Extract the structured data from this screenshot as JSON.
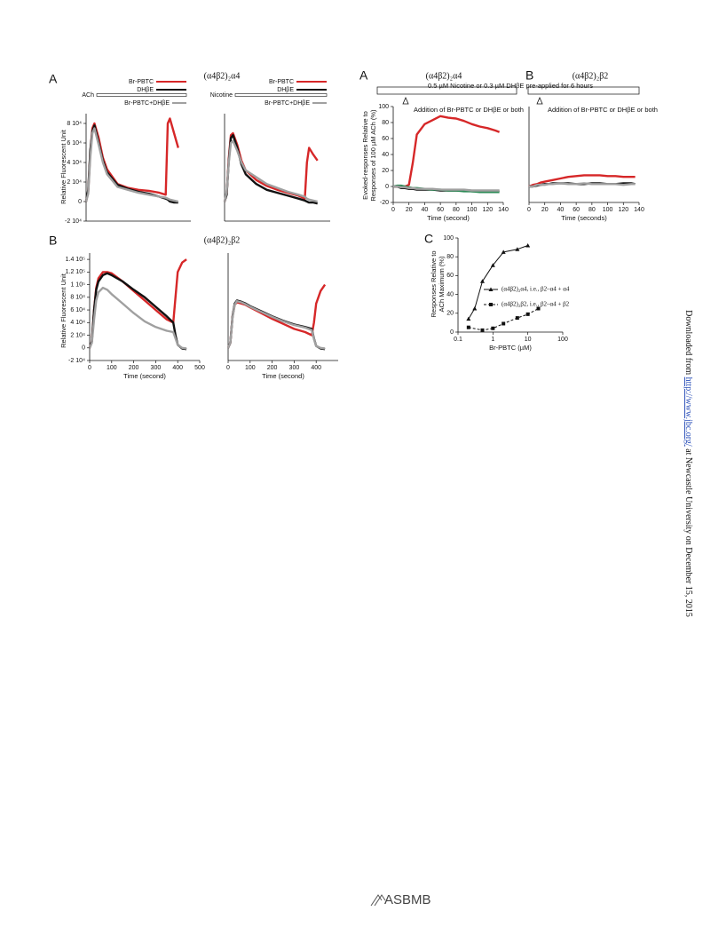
{
  "chart_data": [
    {
      "type": "line",
      "panel": "A",
      "title": "(α4β2)₂α4",
      "treatment": "ACh",
      "ylabel": "Relative Fluorescent Unit",
      "xlim": [
        0,
        500
      ],
      "ylim": [
        -20000,
        90000
      ],
      "yticks": [
        {
          "value": -20000,
          "label": "-2 10⁴"
        },
        0,
        {
          "value": 20000,
          "label": "2 10⁴"
        },
        {
          "value": 40000,
          "label": "4 10⁴"
        },
        {
          "value": 60000,
          "label": "6 10⁴"
        },
        {
          "value": 80000,
          "label": "8 10⁴"
        }
      ],
      "legend": true,
      "x": [
        0,
        10,
        20,
        30,
        40,
        60,
        80,
        100,
        150,
        200,
        250,
        300,
        350,
        380,
        390,
        400,
        420,
        440
      ],
      "series": [
        {
          "name": "Br-PBTC",
          "color": "#d62728",
          "values": [
            0,
            10000,
            50000,
            75000,
            80000,
            65000,
            45000,
            33000,
            18000,
            14000,
            12000,
            11000,
            9000,
            7000,
            80000,
            85000,
            70000,
            55000
          ]
        },
        {
          "name": "DHβE",
          "color": "#111111",
          "values": [
            0,
            12000,
            52000,
            72000,
            78000,
            60000,
            42000,
            30000,
            17000,
            13000,
            10000,
            8000,
            5000,
            3000,
            2000,
            0,
            -1000,
            -1000
          ]
        },
        {
          "name": "Br-PBTC+DHβE",
          "color": "#a0a0a0",
          "values": [
            0,
            8000,
            45000,
            70000,
            75000,
            58000,
            40000,
            28000,
            15000,
            12000,
            9000,
            7000,
            5000,
            4000,
            3000,
            2000,
            1000,
            0
          ]
        }
      ]
    },
    {
      "type": "line",
      "treatment": "Nicotine",
      "xlim": [
        0,
        500
      ],
      "ylim": [
        -20000,
        90000
      ],
      "legend": true,
      "x": [
        0,
        10,
        20,
        30,
        40,
        60,
        80,
        100,
        150,
        200,
        250,
        300,
        350,
        380,
        390,
        400,
        420,
        440
      ],
      "series": [
        {
          "name": "Br-PBTC",
          "color": "#d62728",
          "values": [
            0,
            8000,
            45000,
            68000,
            70000,
            58000,
            42000,
            32000,
            22000,
            16000,
            12000,
            9000,
            6000,
            3000,
            40000,
            55000,
            48000,
            42000
          ]
        },
        {
          "name": "DHβE",
          "color": "#111111",
          "values": [
            0,
            7000,
            42000,
            65000,
            68000,
            55000,
            38000,
            28000,
            18000,
            12000,
            9000,
            6000,
            3000,
            1000,
            0,
            -1000,
            -1000,
            -2000
          ]
        },
        {
          "name": "Br-PBTC+DHβE",
          "color": "#a0a0a0",
          "values": [
            0,
            10000,
            40000,
            60000,
            62000,
            52000,
            40000,
            32000,
            25000,
            18000,
            14000,
            10000,
            7000,
            5000,
            3000,
            2000,
            1000,
            0
          ]
        }
      ]
    },
    {
      "type": "line",
      "panel": "B",
      "title": "(α4β2)₂β2",
      "ylabel": "Relative Fluorescent Unit",
      "xlabel": "Time (second)",
      "xlim": [
        0,
        500
      ],
      "xticks": [
        0,
        100,
        200,
        300,
        400,
        500
      ],
      "ylim": [
        -20000,
        150000
      ],
      "yticks": [
        {
          "value": -20000,
          "label": "-2 10⁴"
        },
        0,
        {
          "value": 20000,
          "label": "2 10⁴"
        },
        {
          "value": 40000,
          "label": "4 10⁴"
        },
        {
          "value": 60000,
          "label": "6 10⁴"
        },
        {
          "value": 80000,
          "label": "8 10⁴"
        },
        {
          "value": 100000,
          "label": "1 10⁵"
        },
        {
          "value": 120000,
          "label": "1.2 10⁵"
        },
        {
          "value": 140000,
          "label": "1.4 10⁵"
        }
      ],
      "x": [
        0,
        10,
        20,
        30,
        40,
        60,
        80,
        100,
        150,
        200,
        250,
        300,
        350,
        380,
        390,
        400,
        420,
        440
      ],
      "series": [
        {
          "color": "#d62728",
          "values": [
            0,
            10000,
            60000,
            95000,
            110000,
            120000,
            120000,
            118000,
            105000,
            90000,
            75000,
            60000,
            45000,
            40000,
            80000,
            120000,
            135000,
            140000
          ]
        },
        {
          "color": "#111111",
          "values": [
            0,
            10000,
            60000,
            92000,
            105000,
            115000,
            118000,
            115000,
            105000,
            92000,
            80000,
            65000,
            50000,
            40000,
            20000,
            5000,
            -1000,
            -2000
          ]
        },
        {
          "color": "#a0a0a0",
          "values": [
            0,
            8000,
            45000,
            75000,
            88000,
            95000,
            92000,
            85000,
            70000,
            55000,
            42000,
            33000,
            27000,
            25000,
            15000,
            5000,
            0,
            -1000
          ]
        }
      ]
    },
    {
      "type": "line",
      "xlabel": "Time (second)",
      "xlim": [
        0,
        500
      ],
      "xticks": [
        0,
        100,
        200,
        300,
        400
      ],
      "ylim": [
        -20000,
        150000
      ],
      "x": [
        0,
        10,
        20,
        30,
        40,
        60,
        80,
        100,
        150,
        200,
        250,
        300,
        350,
        380,
        390,
        400,
        420,
        440
      ],
      "series": [
        {
          "color": "#d62728",
          "values": [
            0,
            8000,
            50000,
            68000,
            72000,
            70000,
            68000,
            64000,
            55000,
            46000,
            38000,
            30000,
            25000,
            20000,
            40000,
            70000,
            90000,
            100000
          ]
        },
        {
          "color": "#111111",
          "values": [
            0,
            8000,
            50000,
            70000,
            75000,
            73000,
            70000,
            66000,
            58000,
            50000,
            43000,
            37000,
            33000,
            30000,
            15000,
            3000,
            -1000,
            -2000
          ]
        },
        {
          "color": "#a0a0a0",
          "values": [
            0,
            8000,
            48000,
            68000,
            74000,
            72000,
            69000,
            65000,
            57000,
            49000,
            42000,
            36000,
            32000,
            28000,
            14000,
            3000,
            0,
            -1000
          ]
        }
      ]
    },
    {
      "type": "line",
      "panel": "A",
      "title": "(α4β2)₂α4",
      "annotation": "0.5 µM Nicotine or 0.3 µM DHβE pre-applied for 6 hours",
      "note": "Addition of Br-PBTC or DHβE or both",
      "ylabel": [
        "Evoked-responses Relative to",
        "Responses of 100 µM ACh (%)"
      ],
      "xlabel": "Time (second)",
      "xlim": [
        0,
        140
      ],
      "xticks": [
        0,
        20,
        40,
        60,
        80,
        100,
        120,
        140
      ],
      "ylim": [
        -20,
        100
      ],
      "yticks": [
        -20,
        0,
        20,
        40,
        60,
        80,
        100
      ],
      "x": [
        0,
        5,
        10,
        15,
        20,
        25,
        30,
        40,
        50,
        60,
        70,
        80,
        90,
        100,
        110,
        120,
        130,
        135
      ],
      "series": [
        {
          "color": "#d62728",
          "values": [
            0,
            0,
            0,
            0,
            2,
            30,
            65,
            78,
            83,
            88,
            86,
            85,
            82,
            78,
            75,
            73,
            70,
            68
          ]
        },
        {
          "color": "#111111",
          "values": [
            0,
            0,
            -2,
            -2,
            -3,
            -3,
            -4,
            -4,
            -4,
            -5,
            -5,
            -5,
            -5,
            -6,
            -6,
            -6,
            -6,
            -5
          ]
        },
        {
          "color": "#2e8b57",
          "values": [
            0,
            1,
            1,
            0,
            -1,
            -2,
            -2,
            -3,
            -4,
            -4,
            -5,
            -5,
            -6,
            -6,
            -7,
            -7,
            -7,
            -7
          ]
        },
        {
          "color": "#a0a0a0",
          "values": [
            0,
            0,
            -1,
            -1,
            -2,
            -2,
            -3,
            -3,
            -3,
            -4,
            -4,
            -4,
            -4,
            -5,
            -5,
            -5,
            -5,
            -5
          ]
        }
      ]
    },
    {
      "type": "line",
      "panel": "B",
      "title": "(α4β2)₂β2",
      "note": "Addition of Br-PBTC or DHβE or both",
      "xlabel": "Time (seconds)",
      "xlim": [
        0,
        140
      ],
      "xticks": [
        0,
        20,
        40,
        60,
        80,
        100,
        120,
        140
      ],
      "ylim": [
        -20,
        100
      ],
      "x": [
        0,
        5,
        10,
        15,
        20,
        25,
        30,
        40,
        50,
        60,
        70,
        80,
        90,
        100,
        110,
        120,
        130,
        135
      ],
      "series": [
        {
          "color": "#d62728",
          "values": [
            0,
            2,
            3,
            5,
            6,
            7,
            8,
            10,
            12,
            13,
            14,
            14,
            14,
            13,
            13,
            12,
            12,
            12
          ]
        },
        {
          "color": "#111111",
          "values": [
            0,
            0,
            1,
            2,
            3,
            3,
            4,
            4,
            4,
            3,
            3,
            4,
            4,
            3,
            3,
            4,
            4,
            3
          ]
        },
        {
          "color": "#a0a0a0",
          "values": [
            0,
            0,
            2,
            2,
            2,
            3,
            3,
            4,
            3,
            3,
            4,
            3,
            3,
            3,
            3,
            2,
            3,
            3
          ]
        }
      ]
    },
    {
      "type": "line",
      "panel": "C",
      "xscale": "log",
      "ylabel": [
        "Responses Relative to",
        "ACh Maximum (%)"
      ],
      "xlabel": "Br-PBTC (µM)",
      "xlim": [
        0.1,
        100
      ],
      "xticks": [
        0.1,
        1,
        10,
        100
      ],
      "ylim": [
        0,
        100
      ],
      "yticks": [
        0,
        20,
        40,
        60,
        80,
        100
      ],
      "legend": true,
      "series": [
        {
          "name": "(α4β2)₂α4, i.e., β2–α4 + α4",
          "color": "#111111",
          "marker": "triangle",
          "x": [
            0.2,
            0.3,
            0.5,
            1,
            2,
            5,
            10
          ],
          "values": [
            14,
            25,
            54,
            71,
            85,
            88,
            92
          ]
        },
        {
          "name": "(α4β2)₂β2, i.e., β2–α4 + β2",
          "color": "#111111",
          "marker": "square",
          "dash": true,
          "x": [
            0.2,
            0.5,
            1,
            2,
            5,
            10,
            20
          ],
          "values": [
            5,
            2,
            4,
            9,
            15,
            19,
            25
          ]
        }
      ]
    }
  ],
  "sidebar": {
    "before": "Downloaded from ",
    "link": "http://www.jbc.org/",
    "after": " at Newcastle University on December 15, 2015"
  },
  "footer": {
    "logo": "ASBMB"
  }
}
